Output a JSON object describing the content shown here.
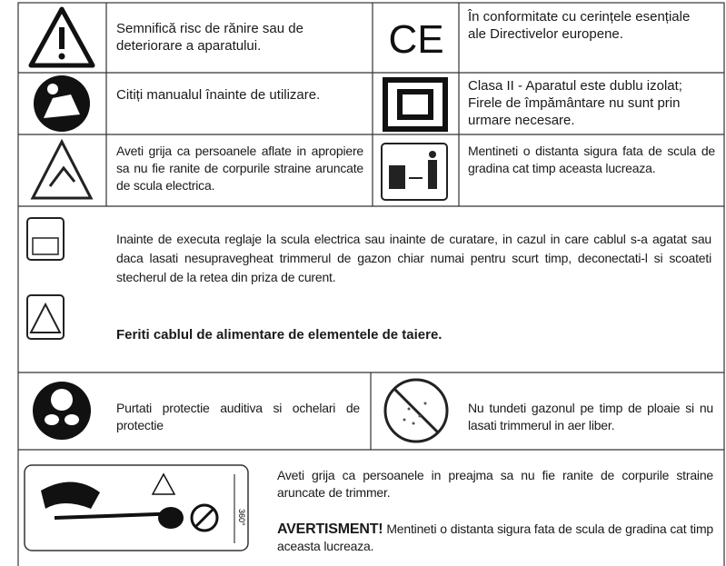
{
  "symbols": [
    {
      "left": "Semnifică risc de rănire sau de deteriorare a aparatului.",
      "right": "În conformitate cu cerințele esențiale ale Directivelor europene."
    },
    {
      "left": "Citiți manualul înainte de utilizare.",
      "right": "Clasa II - Aparatul este dublu izolat; Firele de împământare nu sunt prin urmare necesare."
    },
    {
      "left": "Aveti grija ca persoanele aflate in apropiere sa nu fie ranite de corpurile straine aruncate de scula electrica.",
      "right": "Mentineti o distanta sigura fata de scula de gradina cat timp aceasta lucreaza."
    }
  ],
  "cable_warning": {
    "text": "Inainte de executa reglaje la scula electrica sau inainte de curatare, in cazul in care cablul s-a agatat sau daca lasati nesupravegheat trimmerul de gazon chiar numai pentru scurt timp, deconectati-l si scoateti stecherul de la retea din priza de curent.",
    "bold": "Feriti cablul de alimentare de elementele de taiere."
  },
  "protection": {
    "left": "Purtati protectie auditiva si ochelari de protectie",
    "right": "Nu tundeti gazonul pe timp de ploaie si nu lasati trimmerul in aer liber."
  },
  "thrown_objects": {
    "diagram_label": "360°",
    "text": "Aveti grija ca persoanele in preajma sa nu fie ranite de corpurile straine aruncate de trimmer.",
    "warning_label": "AVERTISMENT!",
    "warning_text": "Mentineti o distanta sigura fata de scula de gradina cat timp aceasta lucreaza."
  }
}
